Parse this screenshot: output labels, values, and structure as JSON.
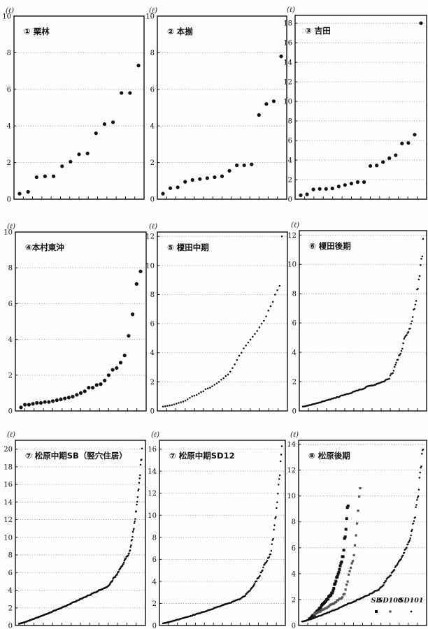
{
  "figure": {
    "background": "#fdfdfb",
    "ink": "#111111",
    "grid_color": "#9a9a9a"
  },
  "chart_data": [
    {
      "id": "p1",
      "type": "scatter",
      "title": "① 栗林",
      "unit": "(ℓ)",
      "ylim": [
        0,
        10
      ],
      "yticks": [
        0,
        2,
        4,
        6,
        8,
        10
      ],
      "grid": "dotted-horizontal",
      "series": [
        {
          "marker": "dot",
          "values": [
            0.3,
            0.4,
            1.2,
            1.25,
            1.25,
            1.8,
            2.05,
            2.45,
            2.5,
            3.6,
            4.1,
            4.2,
            5.8,
            5.8,
            7.3
          ]
        }
      ]
    },
    {
      "id": "p2",
      "type": "scatter",
      "title": "② 本揃",
      "unit": "(ℓ)",
      "ylim": [
        0,
        10
      ],
      "yticks": [
        0,
        2,
        4,
        6,
        8,
        10
      ],
      "grid": "dotted-horizontal",
      "series": [
        {
          "marker": "dot",
          "values": [
            0.3,
            0.6,
            0.65,
            0.95,
            1.05,
            1.1,
            1.15,
            1.2,
            1.25,
            1.55,
            1.85,
            1.85,
            1.9,
            4.6,
            5.2,
            5.35,
            7.8
          ]
        }
      ]
    },
    {
      "id": "p3",
      "type": "scatter",
      "title": "③ 吉田",
      "unit": "(ℓ)",
      "ylim": [
        0,
        18.8
      ],
      "yticks": [
        0,
        2,
        4,
        6,
        8,
        10,
        12,
        14,
        16,
        18
      ],
      "grid": "dotted-horizontal",
      "series": [
        {
          "marker": "dot",
          "values": [
            0.4,
            0.5,
            1.0,
            1.05,
            1.05,
            1.1,
            1.3,
            1.45,
            1.6,
            1.75,
            1.75,
            3.4,
            3.45,
            3.8,
            4.2,
            4.5,
            5.7,
            5.75,
            6.6,
            18.0
          ]
        }
      ]
    },
    {
      "id": "p4",
      "type": "scatter",
      "title": "④本村東沖",
      "unit": "(ℓ)",
      "ylim": [
        0,
        10
      ],
      "yticks": [
        0,
        2,
        4,
        6,
        8,
        10
      ],
      "grid": "dotted-horizontal",
      "series": [
        {
          "marker": "dot",
          "values": [
            0.2,
            0.35,
            0.35,
            0.4,
            0.45,
            0.45,
            0.5,
            0.5,
            0.55,
            0.6,
            0.65,
            0.7,
            0.75,
            0.8,
            0.9,
            1.0,
            1.1,
            1.3,
            1.3,
            1.45,
            1.5,
            1.7,
            2.0,
            2.3,
            2.4,
            2.7,
            3.1,
            4.2,
            5.4,
            7.1,
            7.8
          ]
        }
      ]
    },
    {
      "id": "p5",
      "type": "scatter",
      "title": "⑤ 榎田中期",
      "unit": "(ℓ)",
      "ylim": [
        0,
        12.3
      ],
      "yticks": [
        0,
        2,
        4,
        6,
        8,
        10,
        12
      ],
      "grid": "dotted-horizontal",
      "series": [
        {
          "marker": "dot-small",
          "values": [
            0.3,
            0.32,
            0.35,
            0.38,
            0.4,
            0.45,
            0.5,
            0.55,
            0.6,
            0.65,
            0.7,
            0.8,
            0.9,
            1.0,
            1.05,
            1.1,
            1.2,
            1.3,
            1.35,
            1.5,
            1.55,
            1.6,
            1.7,
            1.8,
            1.9,
            2.0,
            2.15,
            2.25,
            2.4,
            2.5,
            2.7,
            2.95,
            3.2,
            3.5,
            3.8,
            4.0,
            4.3,
            4.5,
            4.7,
            4.9,
            5.1,
            5.3,
            5.5,
            5.75,
            6.0,
            6.2,
            6.5,
            6.9,
            7.2,
            7.5,
            8.0,
            8.3,
            8.6,
            12.0
          ]
        }
      ]
    },
    {
      "id": "p6",
      "type": "scatter",
      "title": "⑥ 榎田後期",
      "unit": "(ℓ)",
      "ylim": [
        0,
        12.3
      ],
      "yticks": [
        0,
        2,
        4,
        6,
        8,
        10,
        12
      ],
      "grid": "dotted-horizontal",
      "curve": {
        "n": 140,
        "start": 0.3,
        "mid_x": 0.7,
        "mid_y": 2.1,
        "knee_x": 0.86,
        "knee_y": 5.3,
        "end": 11.5,
        "noise": 0.04
      },
      "series": [
        {
          "marker": "dot-small"
        }
      ]
    },
    {
      "id": "p7",
      "type": "scatter",
      "title": "⑦ 松原中期SB（竪穴住居）",
      "unit": "(ℓ)",
      "ylim": [
        0,
        21
      ],
      "yticks": [
        0,
        2,
        4,
        6,
        8,
        10,
        12,
        14,
        16,
        18,
        20
      ],
      "grid": "dotted-horizontal",
      "curve": {
        "n": 260,
        "start": 0.2,
        "mid_x": 0.7,
        "mid_y": 4.3,
        "knee_x": 0.88,
        "knee_y": 8.0,
        "end": 19.8,
        "noise": 0.03
      },
      "series": [
        {
          "marker": "dot-small"
        }
      ]
    },
    {
      "id": "p8",
      "type": "scatter",
      "title": "⑦ 松原中期SD12",
      "unit": "(ℓ)",
      "ylim": [
        0,
        16.8
      ],
      "yticks": [
        0,
        2,
        4,
        6,
        8,
        10,
        12,
        14,
        16
      ],
      "grid": "dotted-horizontal",
      "curve": {
        "n": 180,
        "start": 0.2,
        "mid_x": 0.65,
        "mid_y": 2.4,
        "knee_x": 0.88,
        "knee_y": 6.0,
        "end": 16.0,
        "noise": 0.04
      },
      "series": [
        {
          "marker": "dot-small"
        }
      ]
    },
    {
      "id": "p9",
      "type": "scatter",
      "title": "⑧ 松原後期",
      "unit": "(ℓ)",
      "ylim": [
        0,
        14.3
      ],
      "yticks": [
        0,
        2,
        4,
        6,
        8,
        10,
        12,
        14
      ],
      "grid": "dotted-horizontal",
      "legend": {
        "position": "bottom-right",
        "labels": [
          "SB",
          "SD100",
          "SD101"
        ]
      },
      "series": [
        {
          "name": "SB",
          "marker": "square-large",
          "curve": {
            "n": 55,
            "x0": 0.06,
            "x1": 0.38,
            "start": 0.5,
            "mid_x": 0.55,
            "mid_y": 2.4,
            "knee_x": 0.8,
            "knee_y": 4.8,
            "end": 9.5,
            "noise": 0.05
          }
        },
        {
          "name": "SD100",
          "marker": "square-medium",
          "curve": {
            "n": 45,
            "x0": 0.1,
            "x1": 0.48,
            "start": 0.9,
            "mid_x": 0.6,
            "mid_y": 2.1,
            "knee_x": 0.82,
            "knee_y": 5.0,
            "end": 11.0,
            "noise": 0.05
          }
        },
        {
          "name": "SD101",
          "marker": "dot-small",
          "curve": {
            "n": 200,
            "x0": 0.0,
            "x1": 1.0,
            "start": 0.3,
            "mid_x": 0.6,
            "mid_y": 2.6,
            "knee_x": 0.86,
            "knee_y": 6.0,
            "end": 13.8,
            "noise": 0.04
          }
        }
      ]
    }
  ]
}
